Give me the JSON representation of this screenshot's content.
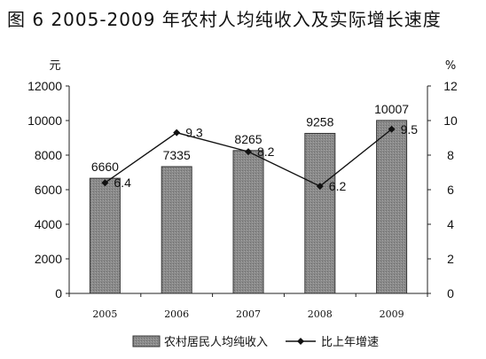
{
  "title": "图 6   2005-2009 年农村人均纯收入及实际增长速度",
  "colors": {
    "bar_fill": "#8a8a8a",
    "bar_stroke": "#333333",
    "line": "#111111",
    "axis": "#222222"
  },
  "chart_data": {
    "type": "bar",
    "categories": [
      "2005",
      "2006",
      "2007",
      "2008",
      "2009"
    ],
    "series": [
      {
        "name": "农村居民人均纯收入",
        "type": "bar",
        "axis": "left",
        "values": [
          6660,
          7335,
          8265,
          9258,
          10007
        ]
      },
      {
        "name": "比上年增速",
        "type": "line",
        "axis": "right",
        "values": [
          6.4,
          9.3,
          8.2,
          6.2,
          9.5
        ]
      }
    ],
    "bar_labels": [
      "6660",
      "7335",
      "8265",
      "9258",
      "10007"
    ],
    "line_labels": [
      "6.4",
      "9.3",
      "8.2",
      "6.2",
      "9.5"
    ],
    "y_left": {
      "unit": "元",
      "ylim": [
        0,
        12000
      ],
      "ticks": [
        "0",
        "2000",
        "4000",
        "6000",
        "8000",
        "10000",
        "12000"
      ]
    },
    "y_right": {
      "unit": "%",
      "ylim": [
        0,
        12
      ],
      "ticks": [
        "0",
        "2",
        "4",
        "6",
        "8",
        "10",
        "12"
      ]
    },
    "grid": false,
    "legend_placement": "bottom"
  }
}
